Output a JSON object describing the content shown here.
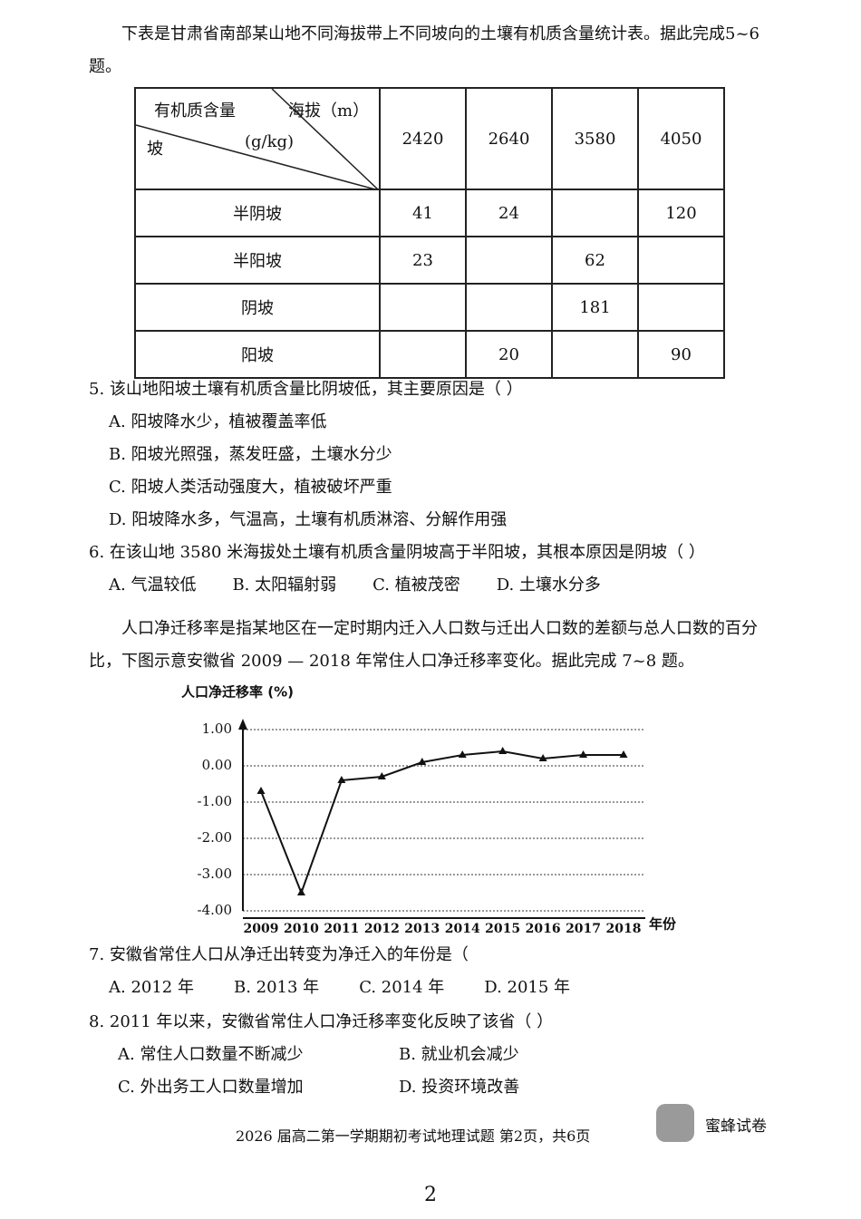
{
  "intro1": "下表是甘肃省南部某山地不同海拔带上不同坡向的土壤有机质含量统计表。据此完成5~6题。",
  "table": {
    "corner": {
      "top_left": "有机质含量",
      "top_right": "海拔（m）",
      "middle": "(g/kg)",
      "bottom_left": "坡"
    },
    "columns": [
      2420,
      2640,
      3580,
      4050
    ],
    "rows": [
      {
        "label": "半阴坡",
        "values": [
          41,
          24,
          null,
          120
        ]
      },
      {
        "label": "半阳坡",
        "values": [
          23,
          null,
          62,
          null
        ]
      },
      {
        "label": "阴坡",
        "values": [
          null,
          null,
          181,
          null
        ]
      },
      {
        "label": "阳坡",
        "values": [
          null,
          20,
          null,
          90
        ]
      }
    ]
  },
  "q5": {
    "stem": "5. 该山地阳坡土壤有机质含量比阴坡低，其主要原因是（ ）",
    "options": [
      "A. 阳坡降水少，植被覆盖率低",
      "B. 阳坡光照强，蒸发旺盛，土壤水分少",
      "C. 阳坡人类活动强度大，植被破坏严重",
      "D. 阳坡降水多，气温高，土壤有机质淋溶、分解作用强"
    ]
  },
  "q6": {
    "stem": "6. 在该山地 3580 米海拔处土壤有机质含量阴坡高于半阳坡，其根本原因是阴坡（ ）",
    "options": [
      "A. 气温较低",
      "B. 太阳辐射弱",
      "C. 植被茂密",
      "D. 土壤水分多"
    ]
  },
  "intro2": "人口净迁移率是指某地区在一定时期内迁入人口数与迁出人口数的差额与总人口数的百分比，下图示意安徽省 2009 — 2018 年常住人口净迁移率变化。据此完成 7~8 题。",
  "chart_data": {
    "type": "line",
    "y_label": "人口净迁移率 (%)",
    "x_label": "年份",
    "categories": [
      "2009",
      "2010",
      "2011",
      "2012",
      "2013",
      "2014",
      "2015",
      "2016",
      "2017",
      "2018"
    ],
    "values": [
      -0.7,
      -3.5,
      -0.4,
      -0.3,
      0.1,
      0.3,
      0.4,
      0.2,
      0.3,
      0.3
    ],
    "color": "#111111",
    "grid": true,
    "ylim": [
      -4,
      1
    ],
    "yticks": [
      {
        "value": 1,
        "label": "1.00"
      },
      {
        "value": 0,
        "label": "0.00"
      },
      {
        "value": -1,
        "label": "-1.00"
      },
      {
        "value": -2,
        "label": "-2.00"
      },
      {
        "value": -3,
        "label": "-3.00"
      },
      {
        "value": -4,
        "label": "-4.00"
      }
    ]
  },
  "q7": {
    "stem": "7. 安徽省常住人口从净迁出转变为净迁入的年份是（",
    "options": [
      "A. 2012 年",
      "B. 2013 年",
      "C. 2014 年",
      "D. 2015 年"
    ]
  },
  "q8": {
    "stem": "8. 2011 年以来，安徽省常住人口净迁移率变化反映了该省（ ）",
    "options": [
      "A. 常住人口数量不断减少",
      "B. 就业机会减少",
      "C. 外出务工人口数量增加",
      "D. 投资环境改善"
    ]
  },
  "footer": "2026 届高二第一学期期初考试地理试题 第2页，共6页",
  "watermark": "蜜蜂试卷",
  "page_number": "2"
}
